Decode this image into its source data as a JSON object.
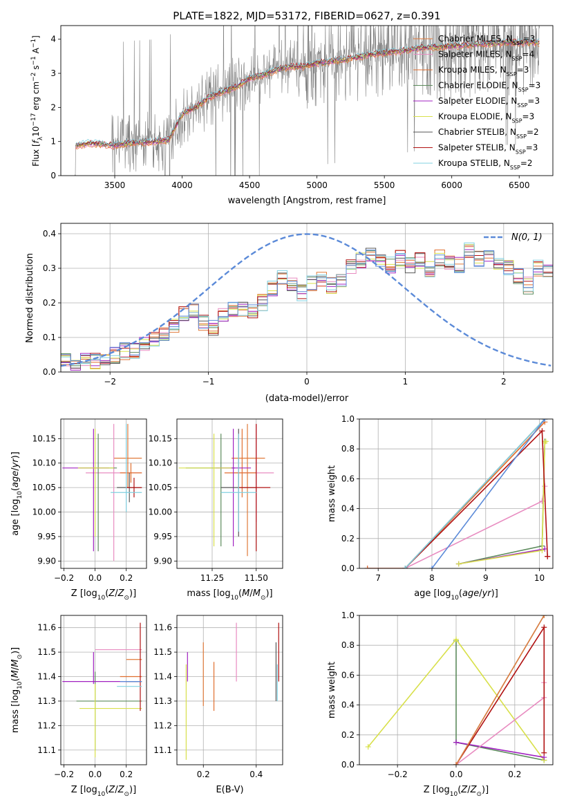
{
  "figure_title": "PLATE=1822, MJD=53172, FIBERID=0627, z=0.391",
  "colors": {
    "data": "#808080",
    "Chabrier MILES": "#e07a3a",
    "Salpeter MILES": "#e88bc0",
    "Kroupa MILES": "#e06e2e",
    "Chabrier ELODIE": "#5b8a5b",
    "Salpeter ELODIE": "#a020c0",
    "Kroupa ELODIE": "#d8e04a",
    "Chabrier STELIB": "#555555",
    "Salpeter STELIB": "#b01010",
    "Kroupa STELIB": "#80d0e0",
    "normal": "#5b8ad8",
    "extra_blue": "#5b8ad8"
  },
  "chart_data": [
    {
      "id": "spectrum",
      "type": "line",
      "title": "PLATE=1822, MJD=53172, FIBERID=0627, z=0.391",
      "xlabel": "wavelength [Angstrom, rest frame]",
      "ylabel": "Flux [f_λ 10^-17 erg cm^-2 s^-1 A^-1]",
      "xlim": [
        3100,
        6750
      ],
      "ylim": [
        0,
        4.4
      ],
      "xticks": [
        3500,
        4000,
        4500,
        5000,
        5500,
        6000,
        6500
      ],
      "yticks": [
        0,
        1,
        2,
        3,
        4
      ],
      "legend_position": "top-right",
      "continuum_model": {
        "x": [
          3200,
          3300,
          3400,
          3500,
          3600,
          3700,
          3800,
          3900,
          4000,
          4100,
          4200,
          4300,
          4400,
          4500,
          4600,
          4700,
          4800,
          4900,
          5000,
          5200,
          5400,
          5600,
          5800,
          6000,
          6200,
          6400,
          6600
        ],
        "y": [
          0.85,
          0.95,
          0.93,
          0.88,
          0.95,
          0.97,
          1.0,
          1.05,
          1.8,
          2.0,
          2.3,
          2.45,
          2.6,
          2.85,
          2.95,
          3.1,
          3.2,
          3.2,
          3.3,
          3.4,
          3.55,
          3.65,
          3.75,
          3.8,
          3.85,
          3.9,
          3.9
        ]
      },
      "series": [
        {
          "name": "Chabrier MILES, N_SSP=3",
          "label_main": "Chabrier MILES, N",
          "label_sub": "SSP",
          "label_end": "=3"
        },
        {
          "name": "Salpeter MILES, N_SSP=4",
          "label_main": "Salpeter MILES, N",
          "label_sub": "SSP",
          "label_end": "=4"
        },
        {
          "name": "Kroupa MILES, N_SSP=3",
          "label_main": "Kroupa MILES, N",
          "label_sub": "SSP",
          "label_end": "=3"
        },
        {
          "name": "Chabrier ELODIE, N_SSP=3",
          "label_main": "Chabrier ELODIE, N",
          "label_sub": "SSP",
          "label_end": "=3"
        },
        {
          "name": "Salpeter ELODIE, N_SSP=3",
          "label_main": "Salpeter ELODIE, N",
          "label_sub": "SSP",
          "label_end": "=3"
        },
        {
          "name": "Kroupa ELODIE, N_SSP=3",
          "label_main": "Kroupa ELODIE, N",
          "label_sub": "SSP",
          "label_end": "=3"
        },
        {
          "name": "Chabrier STELIB, N_SSP=2",
          "label_main": "Chabrier STELIB, N",
          "label_sub": "SSP",
          "label_end": "=2"
        },
        {
          "name": "Salpeter STELIB, N_SSP=3",
          "label_main": "Salpeter STELIB, N",
          "label_sub": "SSP",
          "label_end": "=3"
        },
        {
          "name": "Kroupa STELIB, N_SSP=2",
          "label_main": "Kroupa STELIB, N",
          "label_sub": "SSP",
          "label_end": "=2"
        }
      ]
    },
    {
      "id": "residuals",
      "type": "histogram",
      "xlabel": "(data-model)/error",
      "ylabel": "Normed distribution",
      "xlim": [
        -2.5,
        2.5
      ],
      "ylim": [
        0,
        0.43
      ],
      "xticks": [
        -2,
        -1,
        0,
        1,
        2
      ],
      "yticks": [
        0.0,
        0.1,
        0.2,
        0.3,
        0.4
      ],
      "grid": true,
      "legend_position": "top-right",
      "normal_label": "N(0, 1)",
      "bin_width": 0.1,
      "bin_start": -2.5,
      "base_profile": [
        0.03,
        0.03,
        0.03,
        0.03,
        0.04,
        0.05,
        0.06,
        0.06,
        0.08,
        0.09,
        0.11,
        0.13,
        0.17,
        0.18,
        0.14,
        0.13,
        0.17,
        0.18,
        0.18,
        0.17,
        0.2,
        0.24,
        0.27,
        0.25,
        0.23,
        0.26,
        0.27,
        0.25,
        0.26,
        0.31,
        0.32,
        0.34,
        0.32,
        0.31,
        0.33,
        0.31,
        0.32,
        0.3,
        0.33,
        0.32,
        0.31,
        0.35,
        0.33,
        0.33,
        0.32,
        0.3,
        0.28,
        0.25,
        0.3,
        0.3,
        0.25,
        0.26,
        0.25,
        0.24,
        0.23,
        0.22,
        0.21,
        0.2,
        0.2,
        0.19,
        0.17,
        0.16,
        0.15,
        0.14,
        0.13,
        0.11,
        0.1,
        0.1,
        0.09,
        0.08,
        0.07,
        0.06,
        0.05,
        0.05,
        0.05,
        0.04,
        0.04,
        0.04,
        0.03,
        0.03
      ]
    },
    {
      "id": "age_vs_Z",
      "type": "errorbar",
      "xlabel": "Z [log10(Z/Z⊙)]",
      "ylabel": "age  [log10(age/yr)]",
      "xlim": [
        -0.22,
        0.33
      ],
      "ylim": [
        9.885,
        10.19
      ],
      "xticks": [
        -0.2,
        0.0,
        0.2
      ],
      "yticks": [
        9.9,
        9.95,
        10.0,
        10.05,
        10.1,
        10.15
      ],
      "grid": true,
      "points": [
        {
          "series": "Chabrier MILES",
          "x": 0.21,
          "y": 10.11,
          "xerr": [
            0.09,
            0.09
          ],
          "yerr": [
            0.06,
            0.07
          ]
        },
        {
          "series": "Salpeter MILES",
          "x": 0.12,
          "y": 10.08,
          "xerr": [
            0.18,
            0.18
          ],
          "yerr": [
            0.18,
            0.1
          ]
        },
        {
          "series": "Kroupa MILES",
          "x": 0.23,
          "y": 10.08,
          "xerr": [
            0.07,
            0.07
          ],
          "yerr": [
            0.02,
            0.02
          ]
        },
        {
          "series": "Chabrier ELODIE",
          "x": 0.02,
          "y": 10.09,
          "xerr": [
            0.12,
            0.12
          ],
          "yerr": [
            0.17,
            0.07
          ]
        },
        {
          "series": "Salpeter ELODIE",
          "x": -0.01,
          "y": 10.09,
          "xerr": [
            0.2,
            0.1
          ],
          "yerr": [
            0.17,
            0.08
          ]
        },
        {
          "series": "Kroupa ELODIE",
          "x": 0.0,
          "y": 10.09,
          "xerr": [
            0.11,
            0.12
          ],
          "yerr": [
            0.14,
            0.08
          ]
        },
        {
          "series": "Chabrier STELIB",
          "x": 0.22,
          "y": 10.05,
          "xerr": [
            0.08,
            0.08
          ],
          "yerr": [
            0.03,
            0.03
          ]
        },
        {
          "series": "Salpeter STELIB",
          "x": 0.25,
          "y": 10.05,
          "xerr": [
            0.05,
            0.05
          ],
          "yerr": [
            0.02,
            0.02
          ]
        },
        {
          "series": "Kroupa STELIB",
          "x": 0.2,
          "y": 10.04,
          "xerr": [
            0.1,
            0.1
          ],
          "yerr": [
            0.04,
            0.14
          ]
        }
      ]
    },
    {
      "id": "age_vs_mass",
      "type": "errorbar",
      "xlabel": "mass [log10(M/M⊙)]",
      "ylabel": "",
      "xlim": [
        11.05,
        11.65
      ],
      "ylim": [
        9.885,
        10.19
      ],
      "xticks": [
        11.25,
        11.5
      ],
      "xtick_labels": [
        "11.25",
        "11.50"
      ],
      "yticks": [
        9.9,
        9.95,
        10.0,
        10.05,
        10.1,
        10.15
      ],
      "grid": true,
      "points": [
        {
          "series": "Chabrier MILES",
          "x": 11.45,
          "y": 10.11,
          "xerr": [
            0.09,
            0.1
          ],
          "yerr": [
            0.2,
            0.07
          ]
        },
        {
          "series": "Salpeter MILES",
          "x": 11.5,
          "y": 10.08,
          "xerr": [
            0.13,
            0.1
          ],
          "yerr": [
            0.1,
            0.1
          ]
        },
        {
          "series": "Kroupa MILES",
          "x": 11.42,
          "y": 10.08,
          "xerr": [
            0.1,
            0.08
          ],
          "yerr": [
            0.05,
            0.09
          ]
        },
        {
          "series": "Chabrier ELODIE",
          "x": 11.3,
          "y": 10.09,
          "xerr": [
            0.2,
            0.08
          ],
          "yerr": [
            0.16,
            0.07
          ]
        },
        {
          "series": "Salpeter ELODIE",
          "x": 11.37,
          "y": 10.09,
          "xerr": [
            0.1,
            0.1
          ],
          "yerr": [
            0.16,
            0.08
          ]
        },
        {
          "series": "Kroupa ELODIE",
          "x": 11.26,
          "y": 10.09,
          "xerr": [
            0.2,
            0.1
          ],
          "yerr": [
            0.16,
            0.07
          ]
        },
        {
          "series": "Chabrier STELIB",
          "x": 11.4,
          "y": 10.05,
          "xerr": [
            0.1,
            0.1
          ],
          "yerr": [
            0.1,
            0.12
          ]
        },
        {
          "series": "Salpeter STELIB",
          "x": 11.5,
          "y": 10.05,
          "xerr": [
            0.1,
            0.08
          ],
          "yerr": [
            0.13,
            0.13
          ]
        },
        {
          "series": "Kroupa STELIB",
          "x": 11.4,
          "y": 10.04,
          "xerr": [
            0.1,
            0.1
          ],
          "yerr": [
            0.08,
            0.12
          ]
        }
      ]
    },
    {
      "id": "massweight_vs_age",
      "type": "line",
      "xlabel": "age  [log10(age/yr)]",
      "ylabel": "mass weight",
      "xlim": [
        6.65,
        10.25
      ],
      "ylim": [
        0,
        1.0
      ],
      "xticks": [
        7,
        8,
        9,
        10
      ],
      "yticks": [
        0.0,
        0.2,
        0.4,
        0.6,
        0.8,
        1.0
      ],
      "grid": true,
      "series": [
        {
          "series": "Chabrier MILES",
          "x": [
            7.5,
            10.1
          ],
          "y": [
            0.0,
            1.0
          ]
        },
        {
          "series": "Salpeter MILES",
          "x": [
            6.8,
            7.5,
            10.05,
            10.1
          ],
          "y": [
            0.0,
            0.0,
            0.45,
            0.55
          ]
        },
        {
          "series": "Kroupa MILES",
          "x": [
            6.8,
            7.5,
            10.1
          ],
          "y": [
            0.0,
            0.0,
            0.98
          ]
        },
        {
          "series": "Chabrier ELODIE",
          "x": [
            8.5,
            10.05,
            10.1
          ],
          "y": [
            0.03,
            0.15,
            0.85
          ]
        },
        {
          "series": "Salpeter ELODIE",
          "x": [
            8.5,
            10.1
          ],
          "y": [
            0.03,
            0.13
          ]
        },
        {
          "series": "Kroupa ELODIE",
          "x": [
            8.5,
            10.05,
            10.1,
            10.12
          ],
          "y": [
            0.03,
            0.12,
            0.84,
            0.85
          ]
        },
        {
          "series": "Chabrier STELIB",
          "x": [
            7.5,
            10.1
          ],
          "y": [
            0.0,
            1.0
          ]
        },
        {
          "series": "Salpeter STELIB",
          "x": [
            7.5,
            10.05,
            10.15,
            10.15
          ],
          "y": [
            0.0,
            0.92,
            0.08,
            0.08
          ]
        },
        {
          "series": "Kroupa STELIB",
          "x": [
            7.5,
            10.1
          ],
          "y": [
            0.0,
            1.0
          ]
        },
        {
          "series": "extra_blue",
          "x": [
            8.0,
            10.1
          ],
          "y": [
            0.0,
            1.0
          ]
        }
      ]
    },
    {
      "id": "mass_vs_Z",
      "type": "errorbar",
      "xlabel": "Z [log10(Z/Z⊙)]",
      "ylabel": "mass [log10(M/M⊙)]",
      "xlim": [
        -0.22,
        0.33
      ],
      "ylim": [
        11.04,
        11.65
      ],
      "xticks": [
        -0.2,
        0.0,
        0.2
      ],
      "yticks": [
        11.1,
        11.2,
        11.3,
        11.4,
        11.5,
        11.6
      ],
      "grid": true,
      "points": [
        {
          "series": "Chabrier MILES",
          "x": 0.25,
          "y": 11.47,
          "xerr": [
            0.05,
            0.05
          ],
          "yerr": [
            0.0,
            0.0
          ]
        },
        {
          "series": "Salpeter MILES",
          "x": 0.15,
          "y": 11.51,
          "xerr": [
            0.15,
            0.15
          ],
          "yerr": [
            0.0,
            0.0
          ]
        },
        {
          "series": "Kroupa MILES",
          "x": 0.23,
          "y": 11.4,
          "xerr": [
            0.07,
            0.07
          ],
          "yerr": [
            0.0,
            0.0
          ]
        },
        {
          "series": "Chabrier ELODIE",
          "x": 0.0,
          "y": 11.3,
          "xerr": [
            0.12,
            0.3
          ],
          "yerr": [
            0.2,
            0.12
          ]
        },
        {
          "series": "Salpeter ELODIE",
          "x": -0.01,
          "y": 11.38,
          "xerr": [
            0.2,
            0.3
          ],
          "yerr": [
            0.01,
            0.12
          ]
        },
        {
          "series": "Kroupa ELODIE",
          "x": 0.0,
          "y": 11.27,
          "xerr": [
            0.1,
            0.3
          ],
          "yerr": [
            0.2,
            0.1
          ]
        },
        {
          "series": "Chabrier STELIB",
          "x": 0.25,
          "y": 11.38,
          "xerr": [
            0.05,
            0.05
          ],
          "yerr": [
            0.0,
            0.0
          ]
        },
        {
          "series": "Salpeter STELIB",
          "x": 0.29,
          "y": 11.45,
          "xerr": [
            0.0,
            0.0
          ],
          "yerr": [
            0.19,
            0.17
          ]
        },
        {
          "series": "Kroupa STELIB",
          "x": 0.22,
          "y": 11.36,
          "xerr": [
            0.08,
            0.08
          ],
          "yerr": [
            0.0,
            0.0
          ]
        },
        {
          "series": "extra_blue",
          "x": 0.23,
          "y": 11.38,
          "xerr": [
            0.07,
            0.07
          ],
          "yerr": [
            0.0,
            0.0
          ]
        }
      ]
    },
    {
      "id": "mass_vs_EBV",
      "type": "errorbar",
      "xlabel": "E(B-V)",
      "ylabel": "",
      "xlim": [
        0.1,
        0.5
      ],
      "ylim": [
        11.04,
        11.65
      ],
      "xticks": [
        0.2,
        0.4
      ],
      "yticks": [
        11.1,
        11.2,
        11.3,
        11.4,
        11.5,
        11.6
      ],
      "grid": true,
      "points": [
        {
          "series": "Kroupa ELODIE",
          "x": 0.135,
          "y": 11.25,
          "yerr": [
            0.19,
            0.2
          ]
        },
        {
          "series": "Salpeter ELODIE",
          "x": 0.14,
          "y": 11.44,
          "yerr": [
            0.06,
            0.06
          ]
        },
        {
          "series": "Chabrier MILES",
          "x": 0.2,
          "y": 11.41,
          "yerr": [
            0.13,
            0.13
          ]
        },
        {
          "series": "Kroupa MILES",
          "x": 0.24,
          "y": 11.33,
          "yerr": [
            0.07,
            0.13
          ]
        },
        {
          "series": "Salpeter MILES",
          "x": 0.325,
          "y": 11.5,
          "yerr": [
            0.12,
            0.12
          ]
        },
        {
          "series": "Chabrier STELIB",
          "x": 0.475,
          "y": 11.42,
          "yerr": [
            0.12,
            0.12
          ]
        },
        {
          "series": "Salpeter STELIB",
          "x": 0.485,
          "y": 11.5,
          "yerr": [
            0.12,
            0.12
          ]
        },
        {
          "series": "Kroupa STELIB",
          "x": 0.48,
          "y": 11.35,
          "yerr": [
            0.05,
            0.1
          ]
        }
      ]
    },
    {
      "id": "massweight_vs_Z",
      "type": "line",
      "xlabel": "Z [log10(Z/Z⊙)]",
      "ylabel": "mass weight",
      "xlim": [
        -0.33,
        0.33
      ],
      "ylim": [
        0,
        1.0
      ],
      "xticks": [
        -0.2,
        0.0,
        0.2
      ],
      "yticks": [
        0.0,
        0.2,
        0.4,
        0.6,
        0.8,
        1.0
      ],
      "grid": true,
      "series": [
        {
          "series": "Chabrier ELODIE",
          "x": [
            0.0,
            0.0,
            0.3
          ],
          "y": [
            0.83,
            0.15,
            0.03
          ]
        },
        {
          "series": "Kroupa ELODIE",
          "x": [
            -0.3,
            0.0,
            0.3
          ],
          "y": [
            0.12,
            0.84,
            0.03
          ]
        },
        {
          "series": "Salpeter ELODIE",
          "x": [
            0.0,
            0.3
          ],
          "y": [
            0.15,
            0.05
          ]
        },
        {
          "series": "Salpeter MILES",
          "x": [
            0.0,
            0.3,
            0.3
          ],
          "y": [
            0.0,
            0.45,
            0.55
          ]
        },
        {
          "series": "Salpeter STELIB",
          "x": [
            0.0,
            0.3,
            0.3
          ],
          "y": [
            0.0,
            0.92,
            0.08
          ]
        },
        {
          "series": "Kroupa STELIB",
          "x": [
            0.0,
            0.3
          ],
          "y": [
            0.0,
            1.0
          ]
        },
        {
          "series": "Chabrier MILES",
          "x": [
            0.0,
            0.3
          ],
          "y": [
            0.0,
            1.0
          ]
        }
      ]
    }
  ]
}
